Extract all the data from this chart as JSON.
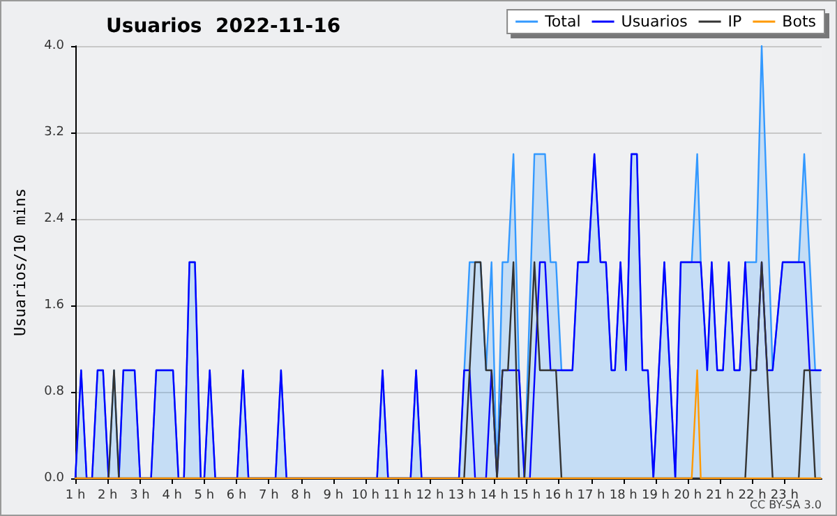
{
  "chart_data": {
    "type": "line",
    "title": "Usuarios  2022-11-16",
    "ylabel": "Usuarios/10 mins",
    "annotations": [
      "CC BY-SA 3.0"
    ],
    "xlim": [
      1,
      24.15
    ],
    "xticks": [
      {
        "value": 1,
        "label": "1 h"
      },
      {
        "value": 2,
        "label": "2 h"
      },
      {
        "value": 3,
        "label": "3 h"
      },
      {
        "value": 4,
        "label": "4 h"
      },
      {
        "value": 5,
        "label": "5 h"
      },
      {
        "value": 6,
        "label": "6 h"
      },
      {
        "value": 7,
        "label": "7 h"
      },
      {
        "value": 8,
        "label": "8 h"
      },
      {
        "value": 9,
        "label": "9 h"
      },
      {
        "value": 10,
        "label": "10 h"
      },
      {
        "value": 11,
        "label": "11 h"
      },
      {
        "value": 12,
        "label": "12 h"
      },
      {
        "value": 13,
        "label": "13 h"
      },
      {
        "value": 14,
        "label": "14 h"
      },
      {
        "value": 15,
        "label": "15 h"
      },
      {
        "value": 16,
        "label": "16 h"
      },
      {
        "value": 17,
        "label": "17 h"
      },
      {
        "value": 18,
        "label": "18 h"
      },
      {
        "value": 19,
        "label": "19 h"
      },
      {
        "value": 20,
        "label": "20 h"
      },
      {
        "value": 21,
        "label": "21 h"
      },
      {
        "value": 22,
        "label": "22 h"
      },
      {
        "value": 23,
        "label": "23 h"
      }
    ],
    "ylim": [
      0,
      4
    ],
    "yticks": [
      {
        "value": 0,
        "label": "0.0"
      },
      {
        "value": 0.8,
        "label": "0.8"
      },
      {
        "value": 1.6,
        "label": "1.6"
      },
      {
        "value": 2.4,
        "label": "2.4"
      },
      {
        "value": 3.2,
        "label": "3.2"
      },
      {
        "value": 4,
        "label": "4.0"
      }
    ],
    "grid": "y",
    "legend": "top right",
    "marker": "none",
    "line_style": "solid",
    "series": [
      {
        "name": "Total",
        "type": "area",
        "color": "#3399ff",
        "x": [
          1,
          1.18,
          1.35,
          1.52,
          1.69,
          1.86,
          2.03,
          2.2,
          2.35,
          2.49,
          2.84,
          3.01,
          3.35,
          3.51,
          4.03,
          4.2,
          4.37,
          4.54,
          4.71,
          4.89,
          5,
          5.17,
          5.34,
          6.02,
          6.2,
          6.37,
          7.21,
          7.38,
          7.55,
          10.36,
          10.53,
          10.7,
          11.4,
          11.57,
          11.74,
          12.9,
          13.23,
          13.57,
          13.74,
          13.91,
          14.08,
          14.25,
          14.42,
          14.59,
          14.76,
          14.93,
          15.24,
          15.57,
          15.74,
          15.91,
          16.08,
          16.42,
          16.59,
          16.91,
          17.1,
          17.29,
          17.46,
          17.63,
          17.74,
          17.91,
          18.08,
          18.25,
          18.42,
          18.59,
          18.76,
          18.93,
          19.27,
          19.61,
          19.78,
          20.12,
          20.29,
          20.4,
          20.6,
          20.74,
          20.91,
          21.09,
          21.27,
          21.44,
          21.61,
          21.78,
          22.12,
          22.29,
          22.63,
          22.94,
          23.44,
          23.61,
          23.95,
          24.12
        ],
        "values": [
          0,
          1,
          0,
          0,
          1,
          1,
          0,
          1,
          0,
          1,
          1,
          0,
          0,
          1,
          1,
          0,
          0,
          2,
          2,
          0,
          0,
          1,
          0,
          0,
          1,
          0,
          0,
          1,
          0,
          0,
          1,
          0,
          0,
          1,
          0,
          0,
          2,
          2,
          1,
          2,
          0,
          2,
          2,
          3,
          1,
          0,
          3,
          3,
          2,
          2,
          1,
          1,
          2,
          2,
          3,
          2,
          2,
          1,
          1,
          2,
          1,
          3,
          3,
          1,
          1,
          0,
          2,
          0,
          2,
          2,
          3,
          2,
          1,
          2,
          1,
          1,
          2,
          1,
          1,
          2,
          2,
          4,
          1,
          2,
          2,
          3,
          1,
          1
        ]
      },
      {
        "name": "Usuarios",
        "type": "line",
        "color": "#0000ff",
        "x": [
          1,
          1.18,
          1.35,
          1.52,
          1.69,
          1.86,
          2.03,
          2.35,
          2.49,
          2.84,
          3.01,
          3.35,
          3.51,
          4.03,
          4.2,
          4.37,
          4.54,
          4.71,
          4.89,
          5,
          5.17,
          5.34,
          6.02,
          6.2,
          6.37,
          7.21,
          7.38,
          7.55,
          10.36,
          10.53,
          10.7,
          11.4,
          11.57,
          11.74,
          12.9,
          13.06,
          13.23,
          13.4,
          13.74,
          13.91,
          14.08,
          14.25,
          14.76,
          14.93,
          15.1,
          15.41,
          15.57,
          15.74,
          16.42,
          16.59,
          16.91,
          17.1,
          17.29,
          17.46,
          17.63,
          17.74,
          17.91,
          18.08,
          18.25,
          18.42,
          18.59,
          18.76,
          18.93,
          19.27,
          19.61,
          19.78,
          20.4,
          20.6,
          20.74,
          20.91,
          21.09,
          21.27,
          21.44,
          21.61,
          21.78,
          21.95,
          22.12,
          22.29,
          22.46,
          22.63,
          22.94,
          23.61,
          23.78,
          24.12
        ],
        "values": [
          0,
          1,
          0,
          0,
          1,
          1,
          0,
          0,
          1,
          1,
          0,
          0,
          1,
          1,
          0,
          0,
          2,
          2,
          0,
          0,
          1,
          0,
          0,
          1,
          0,
          0,
          1,
          0,
          0,
          1,
          0,
          0,
          1,
          0,
          0,
          1,
          1,
          0,
          0,
          1,
          0,
          1,
          1,
          0,
          0,
          2,
          2,
          1,
          1,
          2,
          2,
          3,
          2,
          2,
          1,
          1,
          2,
          1,
          3,
          3,
          1,
          1,
          0,
          2,
          0,
          2,
          2,
          1,
          2,
          1,
          1,
          2,
          1,
          1,
          2,
          1,
          1,
          2,
          1,
          1,
          2,
          2,
          1,
          1
        ]
      },
      {
        "name": "IP",
        "type": "line",
        "color": "#333333",
        "x": [
          1,
          2.03,
          2.2,
          2.35,
          13.06,
          13.4,
          13.57,
          13.74,
          13.91,
          14.08,
          14.25,
          14.42,
          14.59,
          14.76,
          14.93,
          15.24,
          15.41,
          15.91,
          16.08,
          21.78,
          21.95,
          22.12,
          22.29,
          22.63,
          23.44,
          23.61,
          23.78,
          23.95,
          24.12
        ],
        "values": [
          0,
          0,
          1,
          0,
          0,
          2,
          2,
          1,
          1,
          0,
          1,
          1,
          2,
          0,
          0,
          2,
          1,
          1,
          0,
          0,
          1,
          1,
          2,
          0,
          0,
          1,
          1,
          0,
          0
        ]
      },
      {
        "name": "Bots",
        "type": "line",
        "color": "#ff9900",
        "x": [
          1,
          20.12,
          20.29,
          20.4,
          24.12
        ],
        "values": [
          0,
          0,
          1,
          0,
          0
        ]
      }
    ]
  }
}
